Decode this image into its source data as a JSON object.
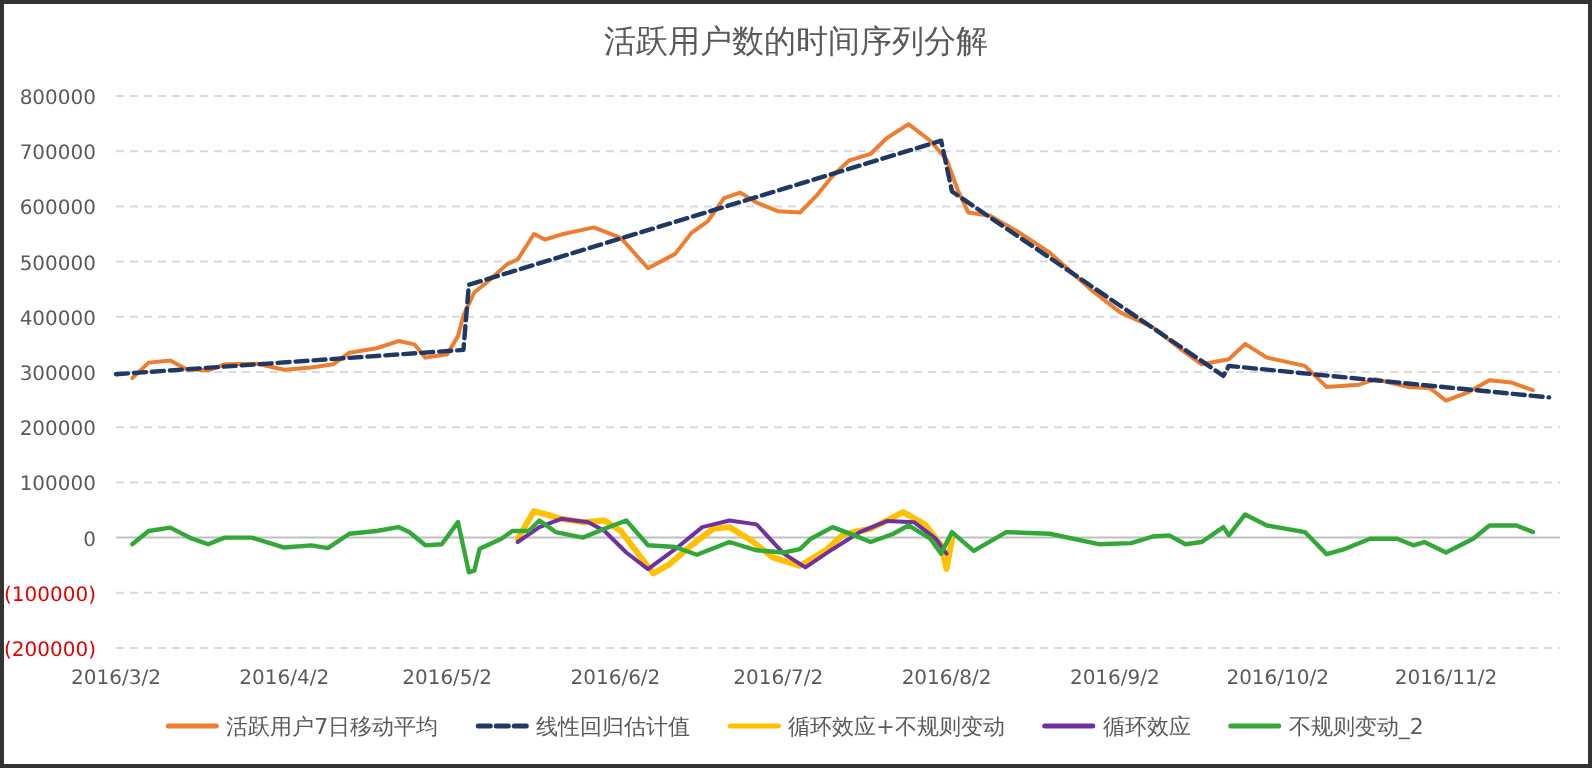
{
  "chart_data": {
    "type": "line",
    "title": "活跃用户数的时间序列分解",
    "xlim": [
      "2016-03-02",
      "2016-11-23"
    ],
    "ylim": [
      -200000,
      800000
    ],
    "xticks": [
      {
        "value": "2016-03-02",
        "label": "2016/3/2"
      },
      {
        "value": "2016-04-02",
        "label": "2016/4/2"
      },
      {
        "value": "2016-05-02",
        "label": "2016/5/2"
      },
      {
        "value": "2016-06-02",
        "label": "2016/6/2"
      },
      {
        "value": "2016-07-02",
        "label": "2016/7/2"
      },
      {
        "value": "2016-08-02",
        "label": "2016/8/2"
      },
      {
        "value": "2016-09-02",
        "label": "2016/9/2"
      },
      {
        "value": "2016-10-02",
        "label": "2016/10/2"
      },
      {
        "value": "2016-11-02",
        "label": "2016/11/2"
      }
    ],
    "yticks": [
      {
        "value": -200000,
        "label": "(200000)"
      },
      {
        "value": -100000,
        "label": "(100000)"
      },
      0,
      100000,
      200000,
      300000,
      400000,
      500000,
      600000,
      700000,
      800000
    ],
    "grid": "y",
    "legend": "bottom",
    "series": [
      {
        "name": "活跃用户7日移动平均",
        "color": "#ed7d31",
        "line_style": "solid",
        "x": [
          "2016-03-05",
          "2016-03-08",
          "2016-03-12",
          "2016-03-15",
          "2016-03-19",
          "2016-03-22",
          "2016-03-28",
          "2016-04-02",
          "2016-04-07",
          "2016-04-11",
          "2016-04-14",
          "2016-04-19",
          "2016-04-23",
          "2016-04-26",
          "2016-04-28",
          "2016-05-02",
          "2016-05-04",
          "2016-05-05",
          "2016-05-07",
          "2016-05-10",
          "2016-05-13",
          "2016-05-15",
          "2016-05-18",
          "2016-05-20",
          "2016-05-23",
          "2016-05-29",
          "2016-06-03",
          "2016-06-06",
          "2016-06-08",
          "2016-06-13",
          "2016-06-16",
          "2016-06-19",
          "2016-06-22",
          "2016-06-25",
          "2016-06-28",
          "2016-07-02",
          "2016-07-06",
          "2016-07-09",
          "2016-07-12",
          "2016-07-15",
          "2016-07-19",
          "2016-07-22",
          "2016-07-26",
          "2016-07-30",
          "2016-08-02",
          "2016-08-04",
          "2016-08-06",
          "2016-08-10",
          "2016-08-15",
          "2016-08-21",
          "2016-08-29",
          "2016-09-03",
          "2016-09-09",
          "2016-09-15",
          "2016-09-18",
          "2016-09-23",
          "2016-09-26",
          "2016-09-30",
          "2016-10-07",
          "2016-10-11",
          "2016-10-17",
          "2016-10-20",
          "2016-10-26",
          "2016-10-30",
          "2016-11-02",
          "2016-11-06",
          "2016-11-10",
          "2016-11-14",
          "2016-11-18"
        ],
        "values": [
          289000,
          317000,
          321000,
          305000,
          303000,
          314000,
          315000,
          304000,
          308000,
          314000,
          335000,
          343000,
          356000,
          350000,
          326000,
          332000,
          365000,
          402000,
          444000,
          468000,
          495000,
          504000,
          550000,
          540000,
          549000,
          562000,
          543000,
          510000,
          488000,
          514000,
          552000,
          573000,
          615000,
          625000,
          607000,
          591000,
          589000,
          619000,
          655000,
          683000,
          695000,
          724000,
          749000,
          719000,
          685000,
          631000,
          589000,
          583000,
          555000,
          516000,
          446000,
          408000,
          381000,
          335000,
          314000,
          323000,
          351000,
          326000,
          311000,
          273000,
          277000,
          287000,
          273000,
          271000,
          248000,
          263000,
          285000,
          281000,
          267000
        ]
      },
      {
        "name": "线性回归估计值",
        "color": "#1f3864",
        "line_style": "dashed",
        "x": [
          "2016-03-02",
          "2016-05-05",
          "2016-05-06",
          "2016-08-01",
          "2016-08-03",
          "2016-09-22",
          "2016-09-23",
          "2016-11-21"
        ],
        "values": [
          296000,
          340000,
          458000,
          719000,
          627000,
          293000,
          311000,
          254000
        ]
      },
      {
        "name": "循环效应+不规则变动",
        "color": "#ffc000",
        "line_style": "solid",
        "x": [
          "2016-05-15",
          "2016-05-18",
          "2016-05-21",
          "2016-05-23",
          "2016-05-27",
          "2016-05-31",
          "2016-06-03",
          "2016-06-06",
          "2016-06-09",
          "2016-06-12",
          "2016-06-16",
          "2016-06-20",
          "2016-06-23",
          "2016-06-27",
          "2016-07-01",
          "2016-07-06",
          "2016-07-11",
          "2016-07-14",
          "2016-07-19",
          "2016-07-25",
          "2016-07-29",
          "2016-08-01",
          "2016-08-02",
          "2016-08-03"
        ],
        "values": [
          -2000,
          48000,
          40000,
          34000,
          28000,
          31000,
          12000,
          -27000,
          -65000,
          -48000,
          -14000,
          16000,
          19000,
          -5000,
          -36000,
          -51000,
          -21000,
          6000,
          16000,
          46000,
          24000,
          -14000,
          -57000,
          -2000
        ]
      },
      {
        "name": "循环效应",
        "color": "#7030a0",
        "line_style": "solid",
        "x": [
          "2016-05-15",
          "2016-05-19",
          "2016-05-23",
          "2016-05-28",
          "2016-05-31",
          "2016-06-04",
          "2016-06-08",
          "2016-06-13",
          "2016-06-18",
          "2016-06-23",
          "2016-06-28",
          "2016-07-03",
          "2016-07-07",
          "2016-07-12",
          "2016-07-17",
          "2016-07-22",
          "2016-07-27",
          "2016-07-31",
          "2016-08-02"
        ],
        "values": [
          -8000,
          19000,
          34000,
          28000,
          12000,
          -27000,
          -57000,
          -21000,
          19000,
          31000,
          24000,
          -29000,
          -54000,
          -21000,
          10000,
          30000,
          28000,
          -2000,
          -29000
        ]
      },
      {
        "name": "不规则变动_2",
        "color": "#33a838",
        "line_style": "solid",
        "x": [
          "2016-03-05",
          "2016-03-08",
          "2016-03-12",
          "2016-03-16",
          "2016-03-19",
          "2016-03-22",
          "2016-03-27",
          "2016-04-02",
          "2016-04-07",
          "2016-04-10",
          "2016-04-14",
          "2016-04-19",
          "2016-04-23",
          "2016-04-25",
          "2016-04-28",
          "2016-05-01",
          "2016-05-04",
          "2016-05-06",
          "2016-05-07",
          "2016-05-08",
          "2016-05-12",
          "2016-05-14",
          "2016-05-17",
          "2016-05-19",
          "2016-05-22",
          "2016-05-27",
          "2016-05-31",
          "2016-06-04",
          "2016-06-08",
          "2016-06-13",
          "2016-06-17",
          "2016-06-23",
          "2016-06-28",
          "2016-07-03",
          "2016-07-06",
          "2016-07-08",
          "2016-07-12",
          "2016-07-16",
          "2016-07-19",
          "2016-07-23",
          "2016-07-26",
          "2016-07-30",
          "2016-08-01",
          "2016-08-03",
          "2016-08-07",
          "2016-08-13",
          "2016-08-21",
          "2016-08-30",
          "2016-09-05",
          "2016-09-09",
          "2016-09-12",
          "2016-09-15",
          "2016-09-18",
          "2016-09-22",
          "2016-09-23",
          "2016-09-26",
          "2016-09-30",
          "2016-10-07",
          "2016-10-11",
          "2016-10-14",
          "2016-10-19",
          "2016-10-24",
          "2016-10-27",
          "2016-10-29",
          "2016-11-02",
          "2016-11-07",
          "2016-11-10",
          "2016-11-15",
          "2016-11-18"
        ],
        "values": [
          -12000,
          12000,
          18000,
          -2000,
          -12000,
          0,
          0,
          -18000,
          -14000,
          -19000,
          7000,
          12000,
          19000,
          10000,
          -14000,
          -12000,
          28000,
          -63000,
          -60000,
          -20000,
          -2000,
          12000,
          12000,
          31000,
          10000,
          0,
          16000,
          31000,
          -14000,
          -17000,
          -31000,
          -8000,
          -23000,
          -27000,
          -21000,
          -2000,
          19000,
          4000,
          -8000,
          6000,
          22000,
          -2000,
          -29000,
          10000,
          -24000,
          10000,
          7000,
          -12000,
          -10000,
          2000,
          4000,
          -12000,
          -8000,
          19000,
          4000,
          42000,
          22000,
          10000,
          -30000,
          -22000,
          -2000,
          -2000,
          -14000,
          -8000,
          -27000,
          -2000,
          22000,
          22000,
          10000
        ]
      }
    ]
  }
}
